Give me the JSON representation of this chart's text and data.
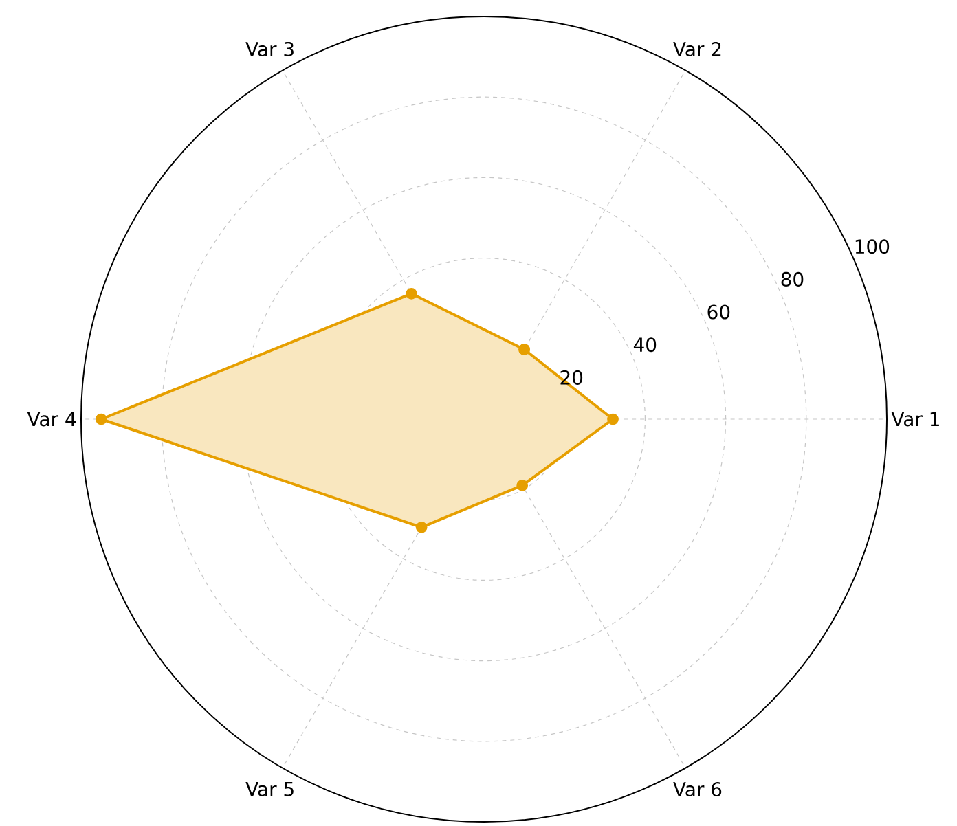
{
  "chart_data": {
    "type": "radar",
    "categories": [
      "Var 2",
      "Var 1",
      "Var 6",
      "Var 5",
      "Var 4",
      "Var 3"
    ],
    "series": [
      {
        "color": "#e69f00",
        "values": [
          20,
          32,
          19,
          31,
          95,
          36
        ]
      }
    ],
    "ylim": [
      0,
      100
    ],
    "yticks": [
      20,
      40,
      60,
      80,
      100
    ],
    "grid": true,
    "marker": "circle",
    "line_style": "solid"
  }
}
